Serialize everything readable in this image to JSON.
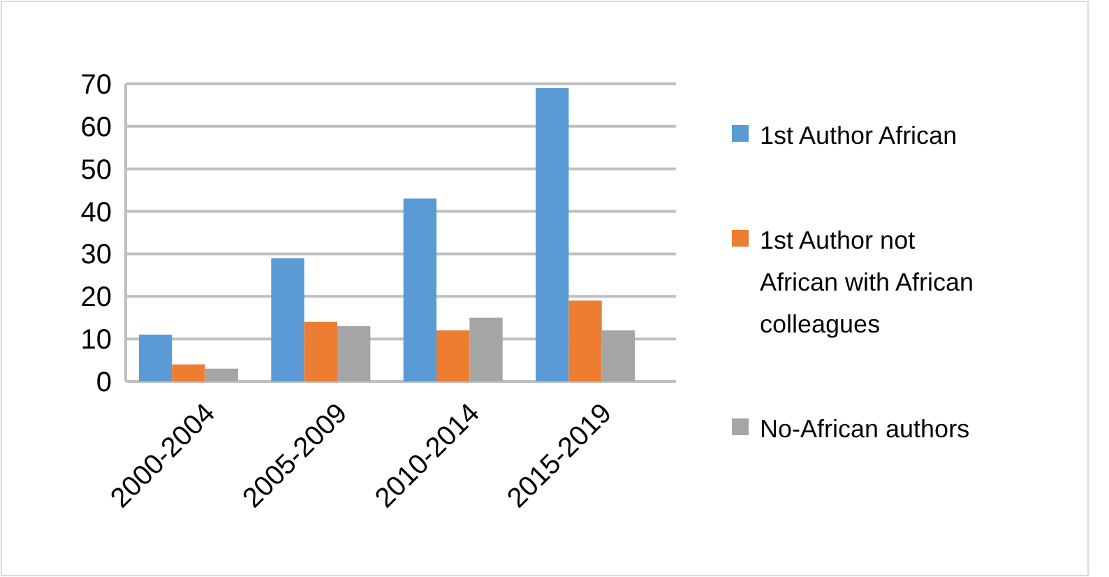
{
  "chart_data": {
    "type": "bar",
    "categories": [
      "2000-2004",
      "2005-2009",
      "2010-2014",
      "2015-2019"
    ],
    "series": [
      {
        "name": "1st Author African",
        "color": "#5b9bd5",
        "values": [
          11,
          29,
          43,
          69
        ]
      },
      {
        "name": "1st Author not African with African colleagues",
        "color": "#ed7d31",
        "values": [
          4,
          14,
          12,
          19
        ]
      },
      {
        "name": "No-African authors",
        "color": "#a5a5a5",
        "values": [
          3,
          13,
          15,
          12
        ]
      }
    ],
    "ylim": [
      0,
      70
    ],
    "yticks": [
      0,
      10,
      20,
      30,
      40,
      50,
      60,
      70
    ],
    "grid": "y",
    "legend": "right"
  }
}
